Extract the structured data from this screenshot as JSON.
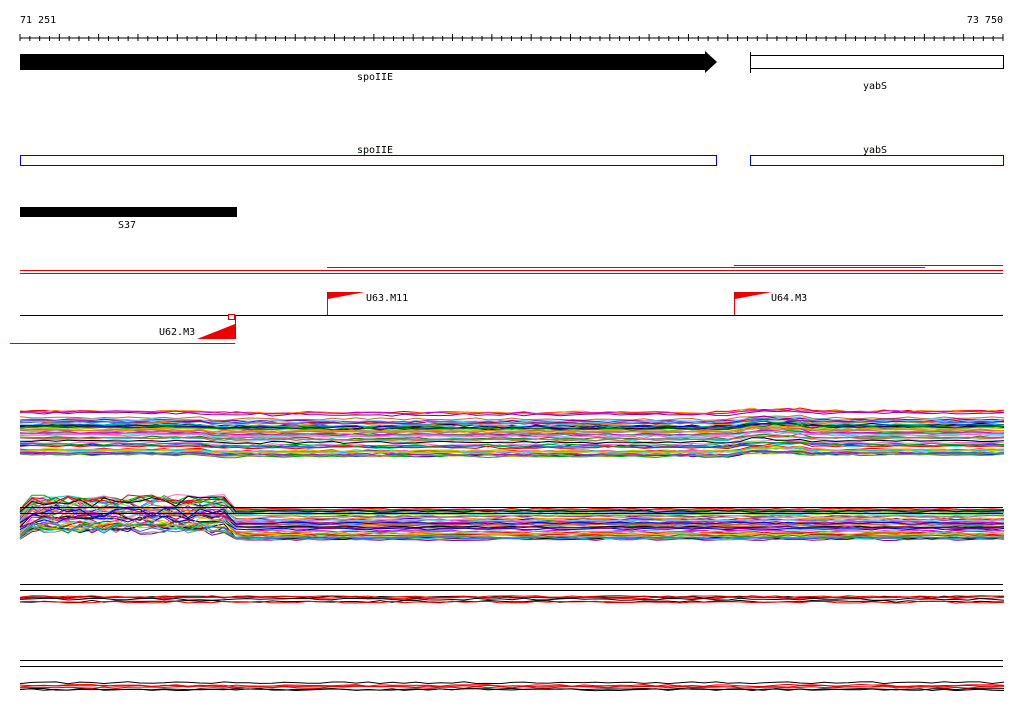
{
  "ruler": {
    "start": "71 251",
    "end": "73 750"
  },
  "genes": [
    {
      "label": "spoIIE"
    },
    {
      "label": "yabS"
    }
  ],
  "cds": [
    {
      "label": "spoIIE"
    },
    {
      "label": "yabS"
    }
  ],
  "features": [
    {
      "label": "S37"
    }
  ],
  "markers": [
    {
      "label": "U63.M11"
    },
    {
      "label": "U64.M3"
    },
    {
      "label": "U62.M3"
    }
  ]
}
